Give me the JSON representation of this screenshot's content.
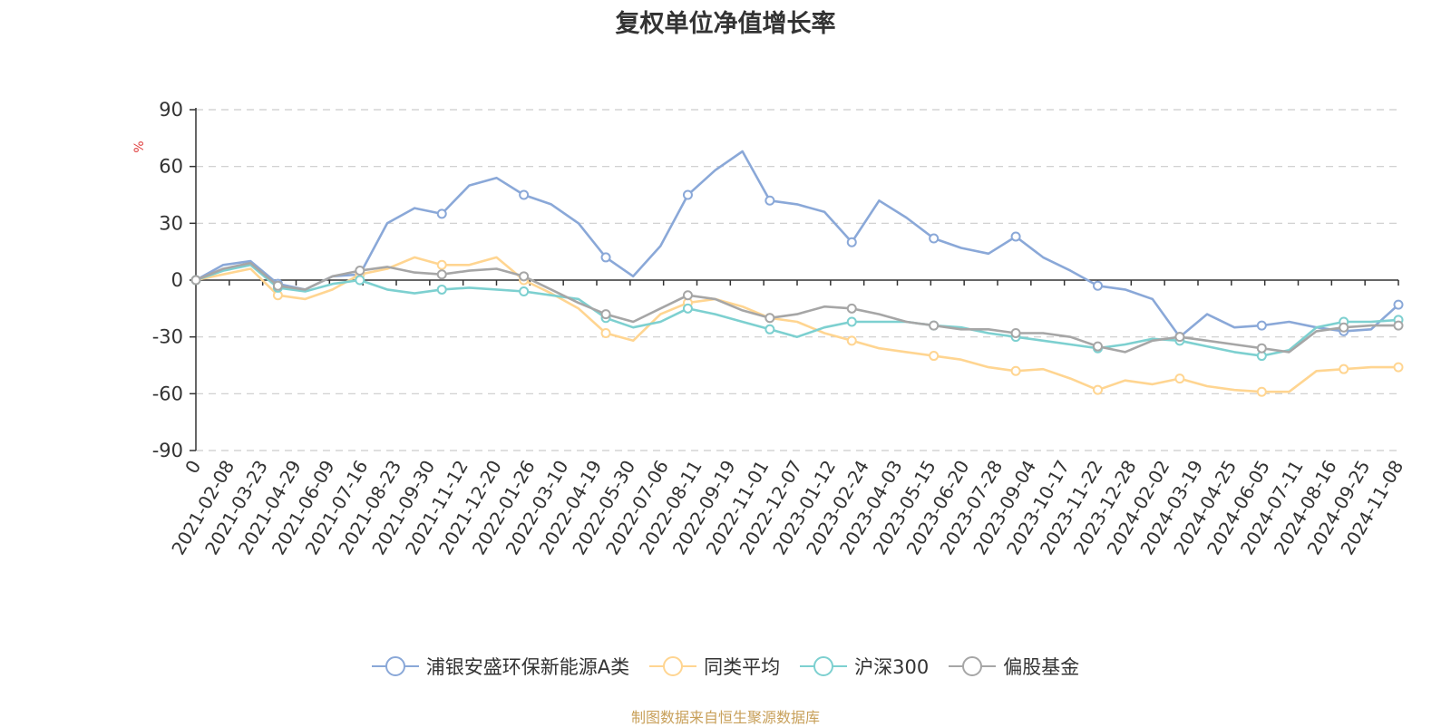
{
  "title": "复权单位净值增长率",
  "source": "制图数据来自恒生聚源数据库",
  "chart_data": {
    "type": "line",
    "title": "复权单位净值增长率",
    "ylabel": "%",
    "ylim": [
      -90,
      90
    ],
    "yticks": [
      90,
      60,
      30,
      0,
      -30,
      -60,
      -90
    ],
    "grid": true,
    "legend_position": "bottom",
    "x_tick_labels": [
      "0",
      "2021-02-08",
      "2021-03-23",
      "2021-04-29",
      "2021-06-09",
      "2021-07-16",
      "2021-08-23",
      "2021-09-30",
      "2021-11-12",
      "2021-12-20",
      "2022-01-26",
      "2022-03-10",
      "2022-04-19",
      "2022-05-30",
      "2022-07-06",
      "2022-08-11",
      "2022-09-19",
      "2022-11-01",
      "2022-12-07",
      "2023-01-12",
      "2023-02-24",
      "2023-04-03",
      "2023-05-15",
      "2023-06-20",
      "2023-07-28",
      "2023-09-04",
      "2023-10-17",
      "2023-11-22",
      "2023-12-28",
      "2024-02-02",
      "2024-03-19",
      "2024-04-25",
      "2024-06-05",
      "2024-07-11",
      "2024-08-16",
      "2024-09-25",
      "2024-11-08"
    ],
    "series": [
      {
        "name": "浦银安盛环保新能源A类",
        "color": "#8aa8d8",
        "values": [
          0,
          8,
          10,
          -2,
          -5,
          2,
          3,
          30,
          38,
          35,
          50,
          54,
          45,
          40,
          30,
          12,
          2,
          18,
          45,
          58,
          68,
          42,
          40,
          36,
          20,
          42,
          33,
          22,
          17,
          14,
          23,
          12,
          5,
          -3,
          -5,
          -10,
          -30,
          -18,
          -25,
          -24,
          -22,
          -25,
          -27,
          -26,
          -13
        ]
      },
      {
        "name": "同类平均",
        "color": "#ffd591",
        "values": [
          0,
          3,
          6,
          -8,
          -10,
          -5,
          3,
          6,
          12,
          8,
          8,
          12,
          0,
          -7,
          -15,
          -28,
          -32,
          -18,
          -12,
          -10,
          -14,
          -20,
          -22,
          -28,
          -32,
          -36,
          -38,
          -40,
          -42,
          -46,
          -48,
          -47,
          -52,
          -58,
          -53,
          -55,
          -52,
          -56,
          -58,
          -59,
          -59,
          -48,
          -47,
          -46,
          -46
        ]
      },
      {
        "name": "沪深300",
        "color": "#7dd0d0",
        "values": [
          0,
          5,
          8,
          -4,
          -6,
          -2,
          0,
          -5,
          -7,
          -5,
          -4,
          -5,
          -6,
          -8,
          -10,
          -20,
          -25,
          -22,
          -15,
          -18,
          -22,
          -26,
          -30,
          -25,
          -22,
          -22,
          -22,
          -24,
          -25,
          -28,
          -30,
          -32,
          -34,
          -36,
          -34,
          -31,
          -32,
          -35,
          -38,
          -40,
          -37,
          -25,
          -22,
          -22,
          -21
        ]
      },
      {
        "name": "偏股基金",
        "color": "#a6a6a6",
        "values": [
          0,
          6,
          9,
          -3,
          -5,
          2,
          5,
          7,
          4,
          3,
          5,
          6,
          2,
          -5,
          -12,
          -18,
          -22,
          -15,
          -8,
          -10,
          -16,
          -20,
          -18,
          -14,
          -15,
          -18,
          -22,
          -24,
          -26,
          -26,
          -28,
          -28,
          -30,
          -35,
          -38,
          -32,
          -30,
          -32,
          -34,
          -36,
          -38,
          -27,
          -25,
          -24,
          -24
        ]
      }
    ]
  }
}
